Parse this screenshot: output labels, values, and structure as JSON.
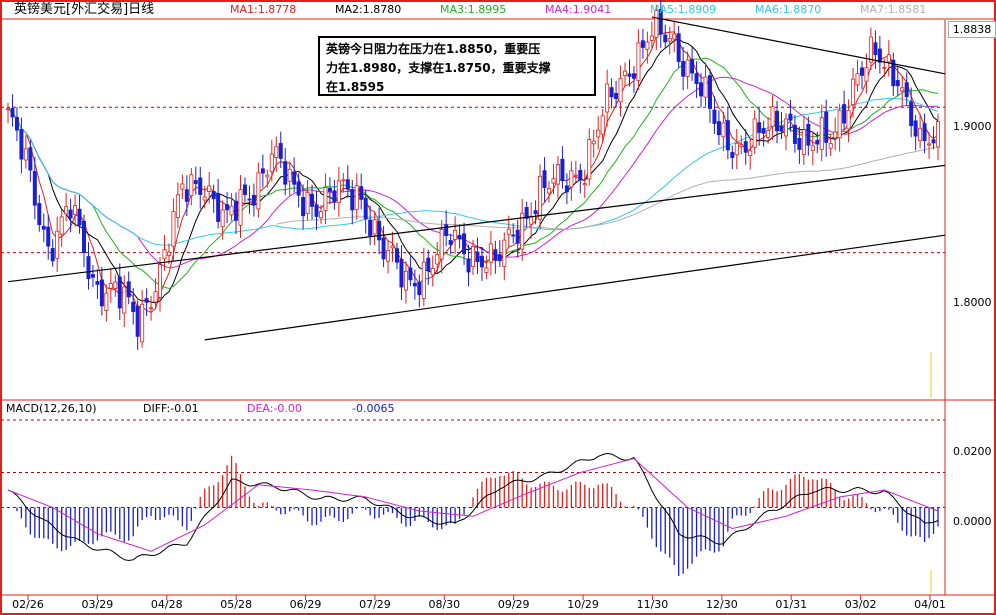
{
  "header": {
    "title": "英镑美元[外汇交易]日线",
    "ma": [
      {
        "label": "MA1:1.8778",
        "color": "#e0201a"
      },
      {
        "label": "MA2:1.8780",
        "color": "#000000"
      },
      {
        "label": "MA3:1.8995",
        "color": "#20b020"
      },
      {
        "label": "MA4:1.9041",
        "color": "#d020d0"
      },
      {
        "label": "MA5:1.8909",
        "color": "#30c8e8"
      },
      {
        "label": "MA6:1.8870",
        "color": "#30c8e8"
      },
      {
        "label": "MA7:1.8581",
        "color": "#b0b0b0"
      }
    ]
  },
  "annotation": {
    "line1": "英镑今日阻力在压力在1.8850，重要压",
    "line2": "力在1.8980，支撑在1.8750，重要支撑",
    "line3": "在1.8595"
  },
  "last_price": "1.8838",
  "macd_header": {
    "name": "MACD(12,26,10)",
    "diff": "DIFF:-0.01",
    "dea": "DEA:-0.00",
    "macd": "-0.0065"
  },
  "colors": {
    "up": "#e0201a",
    "down": "#1a20d0",
    "frame": "#e0201a",
    "dotted": "#c00000",
    "trend": "#000000"
  },
  "chart_data": [
    {
      "type": "candlestick",
      "title": "英镑美元[外汇交易]日线",
      "x_ticks": [
        "02/26",
        "03/29",
        "04/28",
        "05/28",
        "06/29",
        "07/29",
        "08/30",
        "09/29",
        "10/29",
        "11/30",
        "12/30",
        "01/31",
        "03/02",
        "04/01"
      ],
      "y_ticks": [
        "1.9000",
        "1.8000"
      ],
      "ylim": [
        1.7,
        1.96
      ],
      "close_path": [
        [
          0,
          1.895
        ],
        [
          4,
          1.86
        ],
        [
          9,
          1.805
        ],
        [
          14,
          1.83
        ],
        [
          19,
          1.78
        ],
        [
          24,
          1.775
        ],
        [
          29,
          1.75
        ],
        [
          34,
          1.79
        ],
        [
          39,
          1.84
        ],
        [
          44,
          1.85
        ],
        [
          49,
          1.82
        ],
        [
          54,
          1.84
        ],
        [
          59,
          1.87
        ],
        [
          64,
          1.84
        ],
        [
          69,
          1.835
        ],
        [
          74,
          1.84
        ],
        [
          79,
          1.84
        ],
        [
          84,
          1.8
        ],
        [
          89,
          1.78
        ],
        [
          94,
          1.79
        ],
        [
          99,
          1.81
        ],
        [
          104,
          1.8
        ],
        [
          109,
          1.79
        ],
        [
          114,
          1.82
        ],
        [
          119,
          1.84
        ],
        [
          124,
          1.85
        ],
        [
          129,
          1.86
        ],
        [
          134,
          1.9
        ],
        [
          139,
          1.93
        ],
        [
          144,
          1.95
        ],
        [
          149,
          1.945
        ],
        [
          154,
          1.92
        ],
        [
          159,
          1.88
        ],
        [
          164,
          1.875
        ],
        [
          169,
          1.88
        ],
        [
          174,
          1.895
        ],
        [
          179,
          1.87
        ],
        [
          184,
          1.88
        ],
        [
          189,
          1.915
        ],
        [
          194,
          1.935
        ],
        [
          199,
          1.925
        ],
        [
          204,
          1.87
        ],
        [
          208,
          1.88
        ]
      ],
      "trendlines": [
        {
          "from": [
            0,
            1.78
          ],
          "to": [
            208,
            1.86
          ]
        },
        {
          "from": [
            44,
            1.74
          ],
          "to": [
            208,
            1.812
          ]
        },
        {
          "from": [
            144,
            1.962
          ],
          "to": [
            208,
            1.923
          ]
        }
      ]
    },
    {
      "type": "line",
      "title": "MACD(12,26,10)",
      "y_ticks": [
        "0.0200",
        "0.0000"
      ],
      "ylim": [
        -0.05,
        0.05
      ],
      "diff_path": [
        [
          0,
          0.01
        ],
        [
          8,
          -0.008
        ],
        [
          16,
          -0.02
        ],
        [
          28,
          -0.03
        ],
        [
          40,
          -0.02
        ],
        [
          50,
          0.015
        ],
        [
          60,
          0.012
        ],
        [
          70,
          0.005
        ],
        [
          80,
          0.005
        ],
        [
          90,
          -0.005
        ],
        [
          100,
          -0.01
        ],
        [
          110,
          0.012
        ],
        [
          120,
          0.018
        ],
        [
          132,
          0.03
        ],
        [
          140,
          0.028
        ],
        [
          150,
          -0.015
        ],
        [
          160,
          -0.02
        ],
        [
          170,
          -0.003
        ],
        [
          180,
          0.01
        ],
        [
          190,
          0.01
        ],
        [
          196,
          0.009
        ],
        [
          205,
          -0.01
        ],
        [
          208,
          -0.006
        ]
      ],
      "dea_path": [
        [
          0,
          0.01
        ],
        [
          10,
          0.0
        ],
        [
          20,
          -0.015
        ],
        [
          32,
          -0.025
        ],
        [
          44,
          -0.01
        ],
        [
          56,
          0.013
        ],
        [
          68,
          0.01
        ],
        [
          80,
          0.006
        ],
        [
          92,
          -0.002
        ],
        [
          104,
          -0.005
        ],
        [
          116,
          0.008
        ],
        [
          128,
          0.02
        ],
        [
          140,
          0.028
        ],
        [
          152,
          0.0
        ],
        [
          162,
          -0.012
        ],
        [
          174,
          -0.005
        ],
        [
          186,
          0.006
        ],
        [
          196,
          0.01
        ],
        [
          208,
          -0.002
        ]
      ]
    }
  ]
}
